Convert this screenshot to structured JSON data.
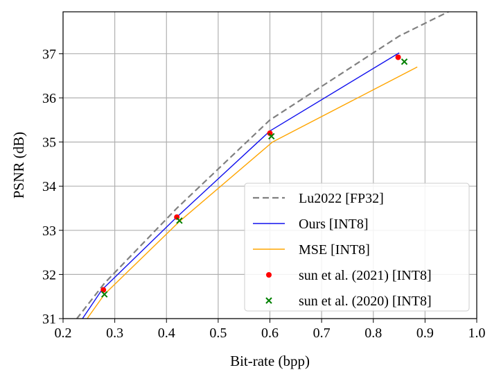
{
  "chart_data": {
    "type": "line",
    "title": "",
    "xlabel": "Bit-rate (bpp)",
    "ylabel": "PSNR (dB)",
    "xlim": [
      0.2,
      1.0
    ],
    "ylim": [
      31,
      37.95
    ],
    "xticks": [
      "0.2",
      "0.3",
      "0.4",
      "0.5",
      "0.6",
      "0.7",
      "0.8",
      "0.9",
      "1.0"
    ],
    "yticks": [
      "31",
      "32",
      "33",
      "34",
      "35",
      "36",
      "37"
    ],
    "grid": true,
    "legend_position": "bottom-right",
    "series": [
      {
        "name": "Lu2022 [FP32]",
        "kind": "line",
        "style": "dashed",
        "color": "#808080",
        "x": [
          0.18,
          0.28,
          0.42,
          0.6,
          0.85,
          0.95
        ],
        "y": [
          30.3,
          31.8,
          33.5,
          35.5,
          37.4,
          37.98
        ]
      },
      {
        "name": "Ours [INT8]",
        "kind": "line",
        "style": "solid",
        "color": "#1010ee",
        "x": [
          0.18,
          0.275,
          0.42,
          0.6,
          0.85
        ],
        "y": [
          30.0,
          31.65,
          33.3,
          35.25,
          37.02
        ]
      },
      {
        "name": "MSE [INT8]",
        "kind": "line",
        "style": "solid",
        "color": "#ffa500",
        "x": [
          0.18,
          0.28,
          0.425,
          0.605,
          0.885
        ],
        "y": [
          29.9,
          31.55,
          33.2,
          35.0,
          36.7
        ]
      },
      {
        "name": "sun et al. (2021) [INT8]",
        "kind": "scatter",
        "marker": "dot",
        "color": "#ff0000",
        "x": [
          0.278,
          0.42,
          0.6,
          0.848
        ],
        "y": [
          31.65,
          33.3,
          35.2,
          36.92
        ]
      },
      {
        "name": "sun et al. (2020) [INT8]",
        "kind": "scatter",
        "marker": "x",
        "color": "#008000",
        "x": [
          0.28,
          0.425,
          0.603,
          0.86
        ],
        "y": [
          31.55,
          33.22,
          35.13,
          36.82
        ]
      }
    ]
  }
}
